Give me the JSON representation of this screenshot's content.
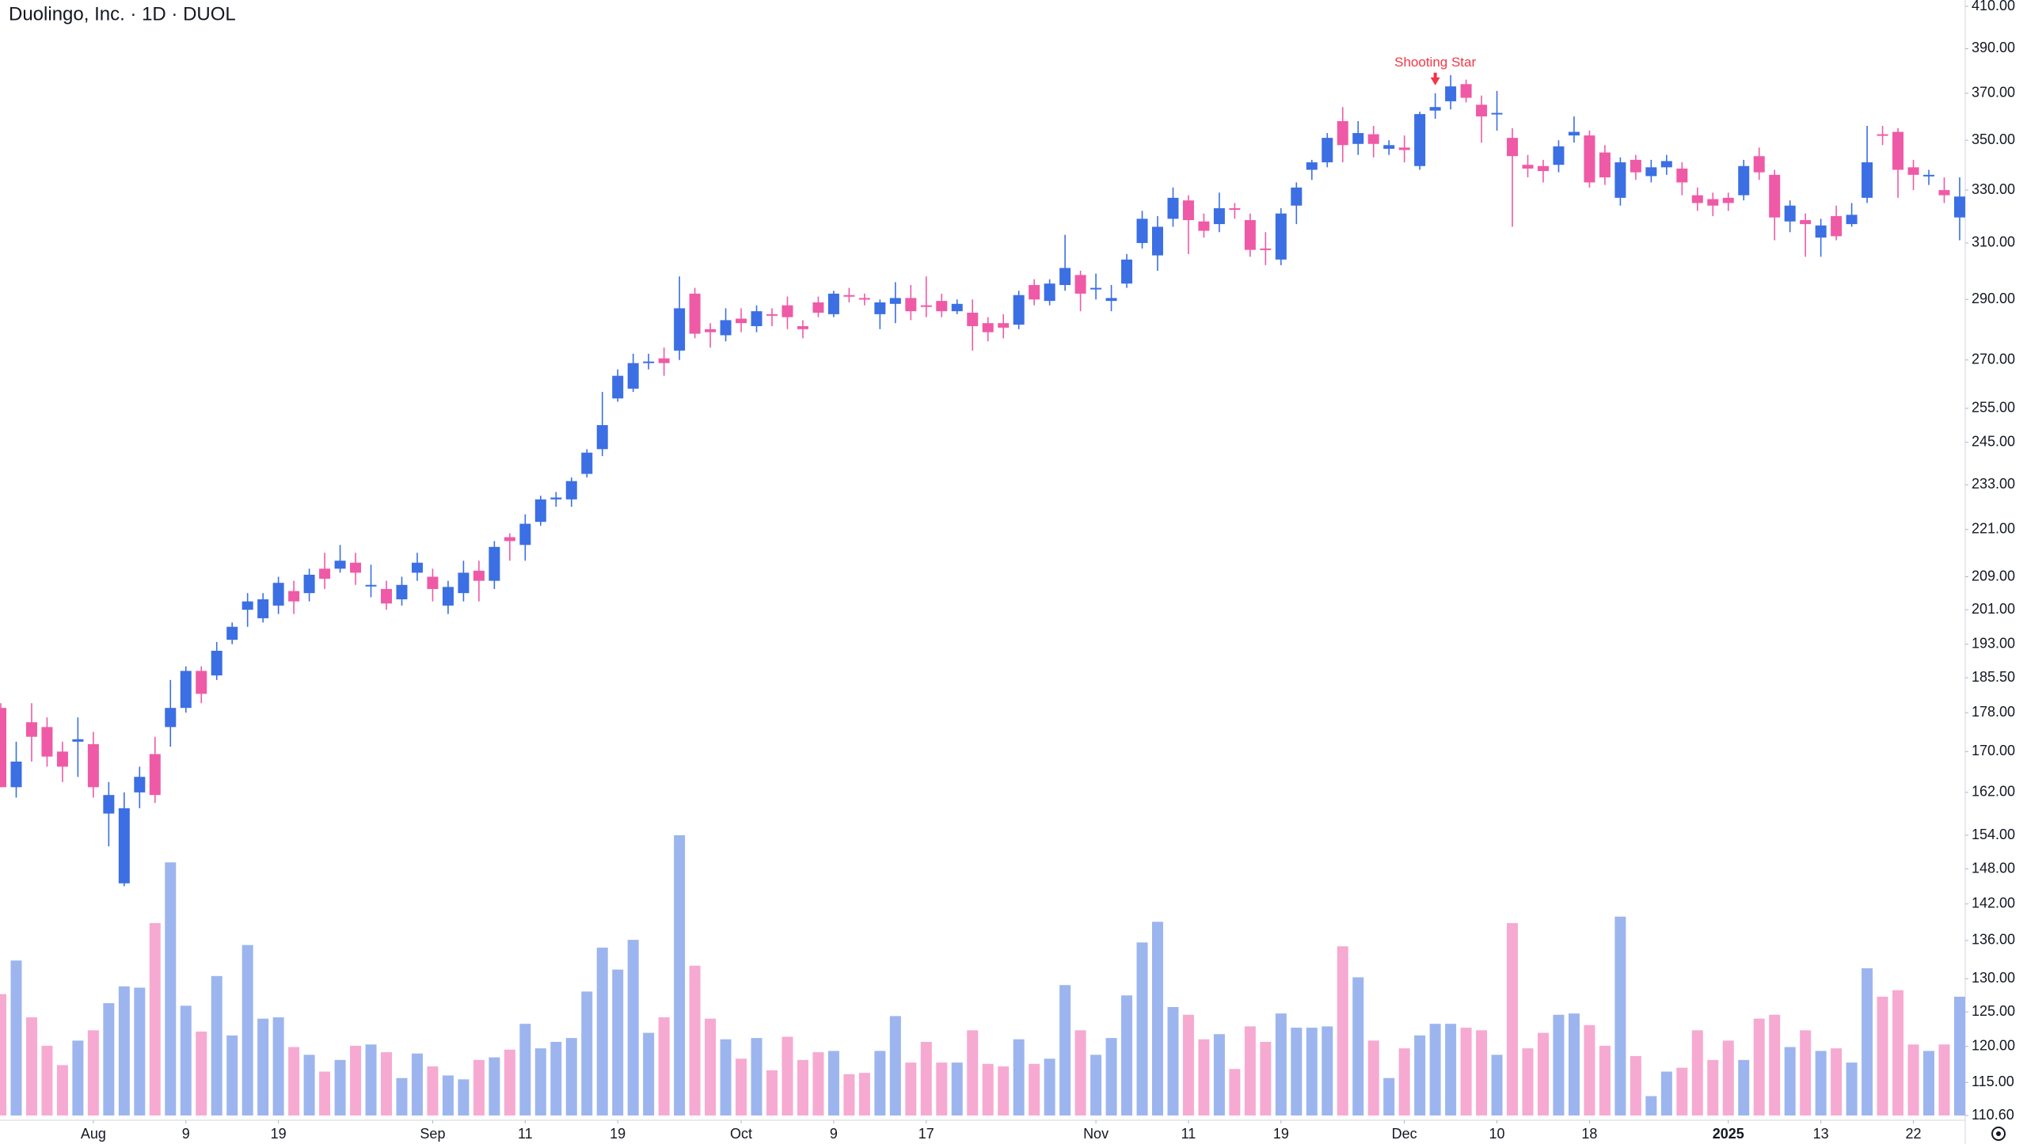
{
  "chart_data": {
    "type": "candlestick",
    "title": "Duolingo, Inc. · 1D · DUOL",
    "log_scale": true,
    "grid": false,
    "up_color": "#3b6fe3",
    "down_color": "#ef5aa6",
    "volume_up_color": "#9db5ee",
    "volume_down_color": "#f6aad1",
    "ylim": [
      110.6,
      410
    ],
    "yticks": [
      {
        "value": 410,
        "label": "410.00"
      },
      {
        "value": 390,
        "label": "390.00"
      },
      {
        "value": 370,
        "label": "370.00"
      },
      {
        "value": 350,
        "label": "350.00"
      },
      {
        "value": 330,
        "label": "330.00"
      },
      {
        "value": 310,
        "label": "310.00"
      },
      {
        "value": 290,
        "label": "290.00"
      },
      {
        "value": 270,
        "label": "270.00"
      },
      {
        "value": 255,
        "label": "255.00"
      },
      {
        "value": 245,
        "label": "245.00"
      },
      {
        "value": 233,
        "label": "233.00"
      },
      {
        "value": 221,
        "label": "221.00"
      },
      {
        "value": 209,
        "label": "209.00"
      },
      {
        "value": 201,
        "label": "201.00"
      },
      {
        "value": 193,
        "label": "193.00"
      },
      {
        "value": 185.5,
        "label": "185.50"
      },
      {
        "value": 178,
        "label": "178.00"
      },
      {
        "value": 170,
        "label": "170.00"
      },
      {
        "value": 162,
        "label": "162.00"
      },
      {
        "value": 154,
        "label": "154.00"
      },
      {
        "value": 148,
        "label": "148.00"
      },
      {
        "value": 142,
        "label": "142.00"
      },
      {
        "value": 136,
        "label": "136.00"
      },
      {
        "value": 130,
        "label": "130.00"
      },
      {
        "value": 125,
        "label": "125.00"
      },
      {
        "value": 120,
        "label": "120.00"
      },
      {
        "value": 115,
        "label": "115.00"
      },
      {
        "value": 110.6,
        "label": "110.60"
      }
    ],
    "xticks": [
      {
        "value": 6,
        "label": "Aug"
      },
      {
        "value": 12,
        "label": "9"
      },
      {
        "value": 18,
        "label": "19"
      },
      {
        "value": 28,
        "label": "Sep"
      },
      {
        "value": 34,
        "label": "11"
      },
      {
        "value": 40,
        "label": "19"
      },
      {
        "value": 48,
        "label": "Oct"
      },
      {
        "value": 54,
        "label": "9"
      },
      {
        "value": 60,
        "label": "17"
      },
      {
        "value": 71,
        "label": "Nov"
      },
      {
        "value": 77,
        "label": "11"
      },
      {
        "value": 83,
        "label": "19"
      },
      {
        "value": 91,
        "label": "Dec"
      },
      {
        "value": 97,
        "label": "10"
      },
      {
        "value": 103,
        "label": "18"
      },
      {
        "value": 112,
        "label": "2025"
      },
      {
        "value": 118,
        "label": "13"
      },
      {
        "value": 124,
        "label": "22"
      }
    ],
    "annotations": [
      {
        "text": "Shooting Star",
        "index": 93,
        "color": "#f23645"
      }
    ],
    "open": [
      179,
      163,
      176,
      175,
      170,
      172,
      171.5,
      158,
      145.5,
      162,
      169.5,
      175,
      179,
      187,
      186,
      194,
      201,
      199,
      202,
      205.5,
      205,
      211,
      211,
      212.5,
      207,
      206,
      203.5,
      210,
      209,
      202,
      205,
      210.5,
      208,
      219,
      217,
      223,
      229,
      229,
      236,
      243,
      258,
      261,
      269,
      270.5,
      273,
      292,
      280,
      278,
      283.5,
      281,
      285,
      288,
      281,
      289,
      285,
      291.5,
      290.5,
      285,
      288.5,
      290.5,
      288,
      289.5,
      286,
      285.5,
      282,
      282,
      281.5,
      295,
      289.5,
      295,
      298.5,
      293.5,
      289.5,
      295.5,
      310,
      305.5,
      319,
      326,
      318,
      317,
      323,
      318.5,
      308,
      304,
      324,
      338,
      341,
      358,
      348.5,
      352.5,
      346.5,
      347,
      339.5,
      362.5,
      366.5,
      374,
      365,
      361,
      351,
      340,
      339.5,
      340,
      352,
      352,
      345,
      327,
      342,
      335.5,
      339,
      338.5,
      328,
      326.5,
      327,
      328,
      343.5,
      336,
      318,
      318.5,
      312,
      320,
      317,
      327,
      352.5,
      353.5,
      339,
      335.5,
      330,
      319.5
    ],
    "high": [
      180,
      172,
      180,
      177,
      172,
      177,
      174,
      164,
      162,
      167,
      173,
      185,
      188,
      188,
      193.5,
      198,
      205,
      205,
      209,
      208,
      211,
      215,
      217,
      215,
      212,
      208,
      209,
      215,
      211,
      208,
      213,
      213,
      218,
      220,
      225,
      230,
      231,
      235,
      243,
      260,
      267,
      272,
      272,
      274,
      298,
      294,
      282,
      287,
      287,
      288,
      287,
      291,
      283,
      291,
      293,
      294,
      292,
      290,
      296,
      295,
      298,
      292,
      290,
      290,
      284,
      285,
      293,
      297,
      297,
      313,
      300,
      299,
      295,
      306,
      322,
      320,
      331,
      328,
      321,
      329,
      325,
      321,
      314,
      323,
      333,
      342,
      353,
      364,
      358,
      356,
      350,
      352,
      362,
      370,
      378,
      376,
      369,
      371,
      355,
      344,
      342,
      350,
      360,
      354,
      348,
      343,
      344,
      342,
      344,
      341,
      331,
      329,
      329,
      342,
      347,
      338,
      326,
      321,
      319,
      324,
      325,
      356,
      356,
      355,
      342,
      338,
      335,
      335
    ],
    "low": [
      163,
      161,
      168,
      167,
      164,
      165,
      161,
      152,
      145,
      159,
      160,
      171,
      178,
      180,
      185,
      193,
      197,
      198,
      200,
      200,
      203,
      206,
      210,
      207,
      204,
      201,
      202,
      208,
      203,
      200,
      203,
      203,
      206,
      213,
      213,
      222,
      227,
      227,
      235,
      241,
      257,
      260,
      267,
      265,
      270,
      277,
      274,
      276,
      279,
      279,
      281,
      280,
      277,
      284,
      284,
      289,
      288,
      280,
      282,
      283,
      284,
      284,
      285,
      273,
      276,
      277,
      280,
      288,
      288,
      293,
      286,
      290,
      286,
      294,
      308,
      300,
      316,
      306,
      312,
      314,
      319,
      305,
      302,
      302,
      317,
      334,
      339,
      341,
      344,
      343,
      344,
      341,
      338,
      359,
      363,
      366,
      349,
      354,
      316,
      335,
      333,
      337,
      349,
      331,
      332,
      324,
      334,
      333,
      336,
      328,
      322,
      320,
      322,
      326,
      334,
      311,
      314,
      305,
      305,
      311,
      316,
      325,
      348,
      327,
      330,
      332,
      325,
      311
    ],
    "close": [
      163,
      168,
      173,
      169,
      167,
      172.5,
      163,
      161.5,
      159,
      165,
      161.5,
      179,
      187,
      182,
      191.5,
      197,
      203,
      203.5,
      207.5,
      203,
      209.5,
      208.5,
      213,
      210,
      207,
      202.5,
      207,
      212.5,
      206,
      206.5,
      210,
      208,
      216.5,
      218,
      222.5,
      229,
      229.5,
      234,
      242,
      250,
      265,
      269,
      269.5,
      269,
      287,
      278.5,
      279,
      283,
      282,
      286,
      284.5,
      284,
      280,
      285.5,
      292,
      291,
      290,
      289,
      290.5,
      286,
      287.5,
      286,
      288.5,
      281,
      279,
      280.5,
      291.5,
      290,
      295.5,
      301,
      292,
      294,
      290.5,
      304,
      319,
      316,
      327,
      318.5,
      314.5,
      323,
      322.5,
      307.5,
      307.5,
      321,
      331,
      341,
      351,
      348,
      353,
      348.5,
      348,
      346,
      361,
      364,
      373,
      368,
      360,
      361.5,
      343.5,
      338.5,
      337.5,
      347.5,
      353.5,
      333,
      335,
      341,
      337,
      339,
      341.5,
      333,
      325,
      324,
      325,
      339.5,
      337,
      319.5,
      324,
      317,
      316.5,
      312.5,
      320.5,
      341,
      352,
      338,
      336,
      336,
      328,
      327.5
    ],
    "volume": [
      94,
      120,
      76,
      54,
      39,
      58,
      66,
      87,
      100,
      99,
      149,
      196,
      85,
      65,
      108,
      62,
      132,
      75,
      76,
      53,
      47,
      34,
      43,
      54,
      55,
      49,
      29,
      48,
      38,
      31,
      28,
      43,
      45,
      51,
      71,
      52,
      57,
      60,
      96,
      130,
      113,
      136,
      64,
      76,
      217,
      116,
      75,
      59,
      44,
      60,
      35,
      61,
      43,
      49,
      50,
      32,
      33,
      50,
      77,
      41,
      57,
      41,
      41,
      66,
      40,
      38,
      59,
      40,
      44,
      101,
      66,
      47,
      60,
      93,
      134,
      150,
      84,
      78,
      59,
      63,
      36,
      69,
      57,
      79,
      68,
      68,
      69,
      131,
      107,
      58,
      29,
      52,
      62,
      71,
      71,
      68,
      66,
      47,
      149,
      52,
      64,
      78,
      79,
      70,
      54,
      154,
      46,
      15,
      34,
      37,
      66,
      43,
      58,
      43,
      75,
      78,
      53,
      66,
      50,
      52,
      41,
      114,
      92,
      97,
      55,
      50,
      55,
      92
    ]
  }
}
